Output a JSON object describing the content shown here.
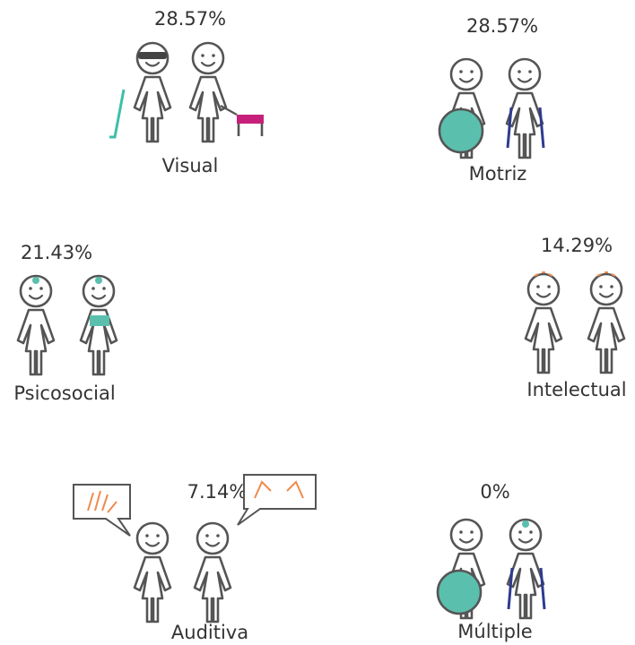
{
  "groups": [
    {
      "label": "Visual",
      "percent": "28.57%"
    },
    {
      "label": "Motriz",
      "percent": "28.57%"
    },
    {
      "label": "Psicosocial",
      "percent": "21.43%"
    },
    {
      "label": "Intelectual",
      "percent": "14.29%"
    },
    {
      "label": "Auditiva",
      "percent": "7.14%"
    },
    {
      "label": "Múltiple",
      "percent": "0%"
    }
  ]
}
